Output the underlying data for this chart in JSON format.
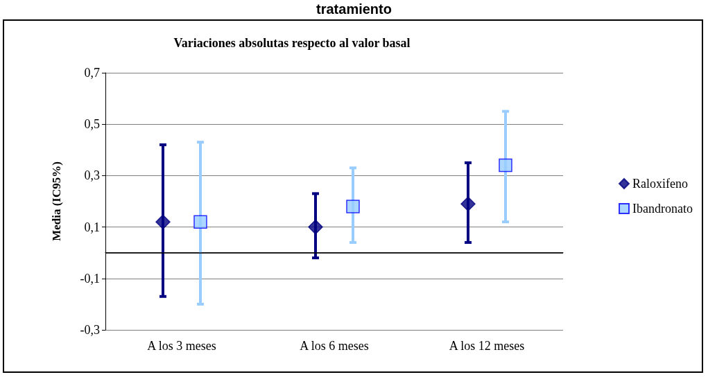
{
  "chart_data": {
    "type": "scatter",
    "title": "tratamiento",
    "subtitle": "Variaciones absolutas respecto al valor basal",
    "ylabel": "Media (IC95%)",
    "categories": [
      "A los 3 meses",
      "A los 6 meses",
      "A los 12 meses"
    ],
    "series": [
      {
        "name": "Raloxifeno",
        "color": "#000080",
        "marker": "diamond",
        "values": [
          0.12,
          0.1,
          0.19
        ],
        "errors": [
          [
            -0.17,
            0.42
          ],
          [
            -0.02,
            0.23
          ],
          [
            0.04,
            0.35
          ]
        ]
      },
      {
        "name": "Ibandronato",
        "color": "#99ccff",
        "marker": "square",
        "values": [
          0.12,
          0.18,
          0.34
        ],
        "errors": [
          [
            -0.2,
            0.43
          ],
          [
            0.04,
            0.33
          ],
          [
            0.12,
            0.55
          ]
        ]
      }
    ],
    "ylim": [
      -0.3,
      0.7
    ],
    "yticks": [
      {
        "value": -0.3,
        "label": "-0,3"
      },
      {
        "value": -0.1,
        "label": "-0,1"
      },
      {
        "value": 0.1,
        "label": "0,1"
      },
      {
        "value": 0.3,
        "label": "0,3"
      },
      {
        "value": 0.5,
        "label": "0,5"
      },
      {
        "value": 0.7,
        "label": "0,7"
      }
    ],
    "ref_lines": [
      {
        "axis": "y",
        "value": 0,
        "color": "#000000"
      }
    ],
    "grid": "y",
    "legend": "right"
  }
}
